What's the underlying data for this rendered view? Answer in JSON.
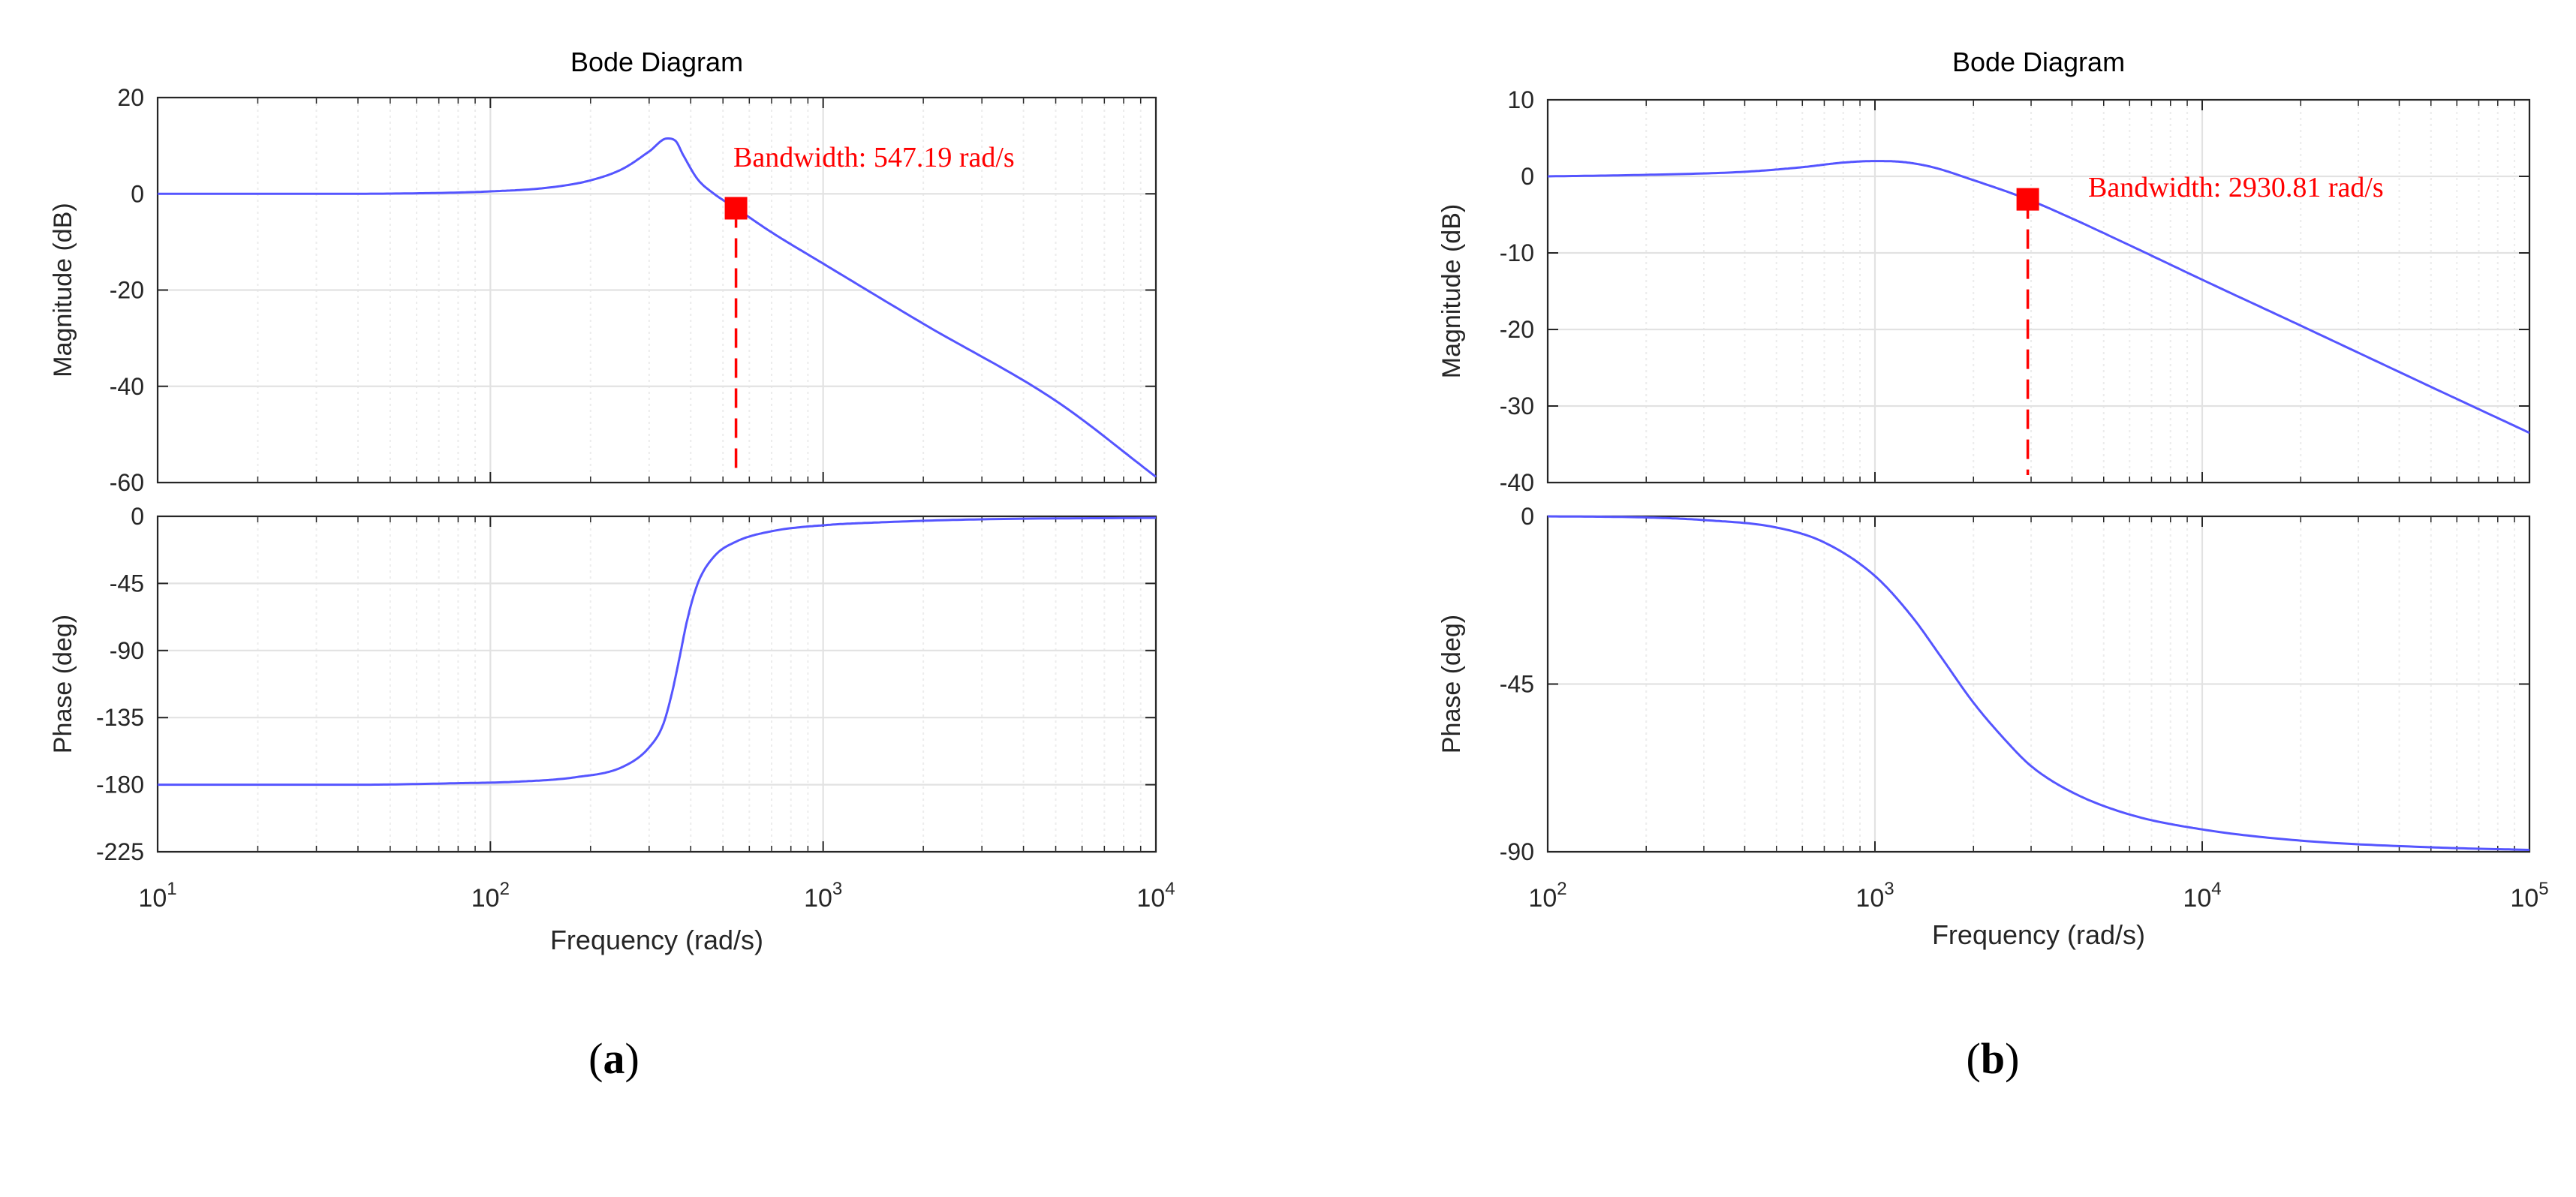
{
  "chart_data": [
    {
      "type": "line",
      "subtype": "bode",
      "title": "Bode Diagram",
      "xlabel": "Frequency  (rad/s)",
      "xscale": "log",
      "xlim": [
        10,
        10000
      ],
      "x_ticks": [
        10,
        100,
        1000,
        10000
      ],
      "x_tick_labels": [
        {
          "base": "10",
          "exp": "1"
        },
        {
          "base": "10",
          "exp": "2"
        },
        {
          "base": "10",
          "exp": "3"
        },
        {
          "base": "10",
          "exp": "4"
        }
      ],
      "magnitude": {
        "ylabel": "Magnitude (dB)",
        "ylim": [
          -60,
          20
        ],
        "yticks": [
          20,
          0,
          -20,
          -40,
          -60
        ],
        "ytick_labels": [
          "20",
          "0",
          "-20",
          "-40",
          "-60"
        ],
        "series": [
          {
            "name": "Magnitude",
            "color": "#5555ff",
            "x": [
              10,
              30,
              60,
              100,
              150,
              200,
              250,
              300,
              340,
              360,
              380,
              420,
              470,
              547.19,
              700,
              1000,
              2000,
              5000,
              10000
            ],
            "y": [
              0,
              0,
              0.1,
              0.5,
              1.3,
              2.8,
              5.2,
              8.8,
              11.5,
              11.0,
              8.0,
              3.0,
              0.0,
              -3.0,
              -8.0,
              -14.5,
              -27.0,
              -43.0,
              -58.8
            ]
          }
        ]
      },
      "phase": {
        "ylabel": "Phase (deg)",
        "ylim": [
          -225,
          0
        ],
        "yticks": [
          0,
          -45,
          -90,
          -135,
          -180,
          -225
        ],
        "ytick_labels": [
          "0",
          "-45",
          "-90",
          "-135",
          "-180",
          "-225"
        ],
        "series": [
          {
            "name": "Phase",
            "color": "#5555ff",
            "x": [
              10,
              40,
              80,
              120,
              180,
              250,
              300,
              330,
              350,
              370,
              390,
              420,
              470,
              547.19,
              700,
              1000,
              1500,
              3000,
              10000
            ],
            "y": [
              -180,
              -180,
              -179,
              -178,
              -175,
              -168,
              -155,
              -140,
              -120,
              -95,
              -70,
              -45,
              -27,
              -17,
              -10,
              -6,
              -4,
              -2,
              -1
            ]
          }
        ]
      },
      "bandwidth": {
        "frequency": 547.19,
        "magnitude_db": -3,
        "label": "Bandwidth:  547.19 rad/s",
        "color": "#ff0000"
      },
      "caption": "(a)"
    },
    {
      "type": "line",
      "subtype": "bode",
      "title": "Bode Diagram",
      "xlabel": "Frequency  (rad/s)",
      "xscale": "log",
      "xlim": [
        100,
        100000
      ],
      "x_ticks": [
        100,
        1000,
        10000,
        100000
      ],
      "x_tick_labels": [
        {
          "base": "10",
          "exp": "2"
        },
        {
          "base": "10",
          "exp": "3"
        },
        {
          "base": "10",
          "exp": "4"
        },
        {
          "base": "10",
          "exp": "5"
        }
      ],
      "magnitude": {
        "ylabel": "Magnitude (dB)",
        "ylim": [
          -40,
          10
        ],
        "yticks": [
          10,
          0,
          -10,
          -20,
          -30,
          -40
        ],
        "ytick_labels": [
          "10",
          "0",
          "-10",
          "-20",
          "-30",
          "-40"
        ],
        "series": [
          {
            "name": "Magnitude",
            "color": "#5555ff",
            "x": [
              100,
              200,
              400,
              600,
              800,
              1000,
              1200,
              1500,
              2000,
              2930.81,
              4000,
              6000,
              10000,
              20000,
              50000,
              100000
            ],
            "y": [
              0,
              0.2,
              0.6,
              1.2,
              1.8,
              2.0,
              1.9,
              1.2,
              -0.5,
              -3.0,
              -5.5,
              -9.0,
              -13.5,
              -19.5,
              -27.5,
              -33.5
            ]
          }
        ]
      },
      "phase": {
        "ylabel": "Phase (deg)",
        "ylim": [
          -90,
          0
        ],
        "yticks": [
          0,
          -45,
          -90
        ],
        "ytick_labels": [
          "0",
          "-45",
          "-90"
        ],
        "series": [
          {
            "name": "Phase",
            "color": "#5555ff",
            "x": [
              100,
              200,
              300,
              500,
              700,
              1000,
              1300,
              1600,
              2000,
              2500,
              3000,
              4000,
              6000,
              10000,
              20000,
              50000,
              100000
            ],
            "y": [
              0,
              -0.3,
              -1,
              -3,
              -7,
              -16,
              -27,
              -38,
              -50,
              -60,
              -67,
              -74,
              -80,
              -84,
              -87,
              -88.8,
              -89.5
            ]
          }
        ]
      },
      "bandwidth": {
        "frequency": 2930.81,
        "magnitude_db": -3,
        "label": "Bandwidth:  2930.81 rad/s",
        "color": "#ff0000"
      },
      "caption": "(b)"
    }
  ]
}
